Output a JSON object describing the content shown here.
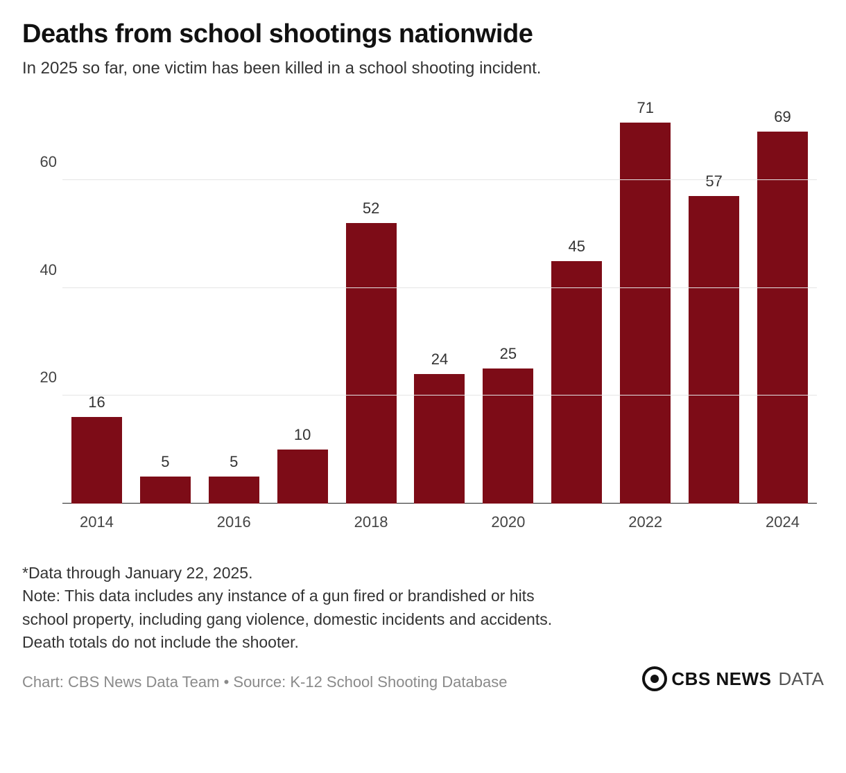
{
  "title": "Deaths from school shootings nationwide",
  "subtitle": "In 2025 so far, one victim has been killed in a school shooting incident.",
  "chart": {
    "type": "bar",
    "categories": [
      "2014",
      "2015",
      "2016",
      "2017",
      "2018",
      "2019",
      "2020",
      "2021",
      "2022",
      "2023",
      "2024"
    ],
    "values": [
      16,
      5,
      5,
      10,
      52,
      24,
      25,
      45,
      71,
      57,
      69
    ],
    "show_x_labels": [
      "2014",
      "",
      "2016",
      "",
      "2018",
      "",
      "2020",
      "",
      "2022",
      "",
      "2024"
    ],
    "show_values": [
      "16",
      "5",
      "5",
      "10",
      "52",
      "24",
      "25",
      "45",
      "71",
      "57",
      "69"
    ],
    "bar_color": "#7d0c17",
    "background_color": "#ffffff",
    "grid_color": "#e4e4e4",
    "baseline_color": "#222222",
    "ylim": [
      0,
      75
    ],
    "ytick_values": [
      20,
      40,
      60
    ],
    "ytick_labels": [
      "20",
      "40",
      "60"
    ],
    "value_fontsize": 22,
    "tick_fontsize": 22,
    "bar_width_pct": 84
  },
  "footnote_line1": "*Data through January 22, 2025.",
  "footnote_line2": "Note: This data includes any instance of a gun fired or brandished or hits school property, including gang violence, domestic incidents and accidents. Death totals do not include the shooter.",
  "credit": "Chart: CBS News Data Team • Source: K-12 School Shooting Database",
  "brand_bold": "CBS NEWS",
  "brand_light": "DATA"
}
